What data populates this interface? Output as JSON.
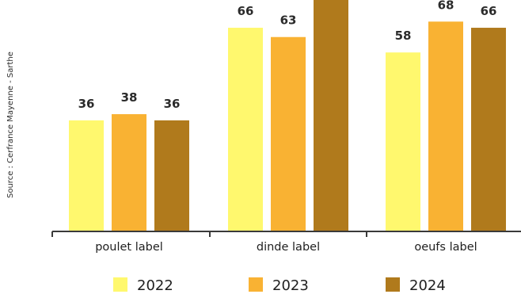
{
  "source_text": "Source : Cerfrance Mayenne - Sarthe",
  "colors": {
    "2022": "#fff86e",
    "2023": "#f9b233",
    "2024": "#b07a1c",
    "axis": "#3a3a3a"
  },
  "chart_data": {
    "type": "bar",
    "title": "",
    "xlabel": "",
    "ylabel": "",
    "categories": [
      "poulet label",
      "dinde label",
      "oeufs label"
    ],
    "series": [
      {
        "name": "2022",
        "values": [
          36,
          66,
          58
        ]
      },
      {
        "name": "2023",
        "values": [
          38,
          63,
          68
        ]
      },
      {
        "name": "2024",
        "values": [
          36,
          75,
          66
        ]
      }
    ],
    "data_labels": [
      [
        "36",
        "66",
        "58"
      ],
      [
        "38",
        "63",
        "68"
      ],
      [
        "36",
        "",
        "66"
      ]
    ],
    "ylim": [
      0,
      75
    ],
    "grid": false,
    "legend_position": "bottom"
  }
}
